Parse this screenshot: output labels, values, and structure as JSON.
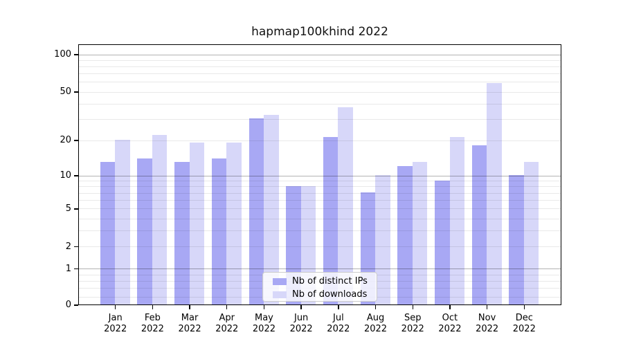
{
  "title": "hapmap100khind 2022",
  "colors": {
    "ips_bar": "#a8a8f4",
    "downloads_bar": "#d7d7f9",
    "grid_minor": "rgba(0,0,0,0.085)",
    "grid_major": "rgba(0,0,0,0.30)",
    "spine": "#000000",
    "legend_border": "#cccccc"
  },
  "chart_data": {
    "type": "bar",
    "title": "hapmap100khind 2022",
    "xlabel": "",
    "ylabel": "",
    "yscale": "log1p",
    "grid": "horizontal",
    "legend_position": "bottom-center",
    "categories": [
      "Jan 2022",
      "Feb 2022",
      "Mar 2022",
      "Apr 2022",
      "May 2022",
      "Jun 2022",
      "Jul 2022",
      "Aug 2022",
      "Sep 2022",
      "Oct 2022",
      "Nov 2022",
      "Dec 2022"
    ],
    "x_axis": {
      "months": [
        "Jan",
        "Feb",
        "Mar",
        "Apr",
        "May",
        "Jun",
        "Jul",
        "Aug",
        "Sep",
        "Oct",
        "Nov",
        "Dec"
      ],
      "year": "2022"
    },
    "series": [
      {
        "name": "Nb of distinct IPs",
        "values": [
          13,
          14,
          13,
          14,
          30,
          8,
          21,
          7,
          12,
          9,
          18,
          10
        ]
      },
      {
        "name": "Nb of downloads",
        "values": [
          20,
          22,
          19,
          19,
          32,
          8,
          37,
          10,
          13,
          21,
          58,
          13
        ]
      }
    ],
    "yticks": [
      0,
      1,
      2,
      5,
      10,
      20,
      50,
      100
    ],
    "ylim": [
      0,
      118
    ],
    "grid_minor_values": [
      0.2,
      0.4,
      0.6,
      0.8,
      2,
      3,
      4,
      5,
      6,
      7,
      8,
      9,
      20,
      30,
      40,
      50,
      60,
      70,
      80,
      90
    ],
    "grid_major_values": [
      1,
      10,
      100
    ]
  }
}
